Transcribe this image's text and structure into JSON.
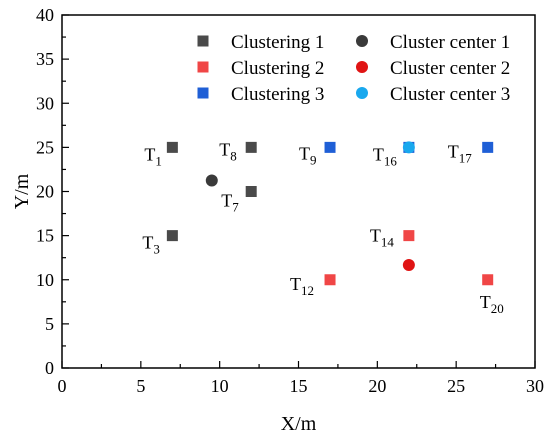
{
  "chart_data": {
    "type": "scatter",
    "xlabel": "X/m",
    "ylabel": "Y/m",
    "xlim": [
      0,
      30
    ],
    "ylim": [
      0,
      40
    ],
    "xticks": [
      0,
      5,
      10,
      15,
      20,
      25,
      30
    ],
    "yticks": [
      0,
      5,
      10,
      15,
      20,
      25,
      30,
      35,
      40
    ],
    "grid": false,
    "legend_position": "top-right",
    "series": [
      {
        "name": "Clustering 1",
        "marker": "square",
        "color": "#4a4a4a",
        "points": [
          {
            "label": "T",
            "sub": "1",
            "x": 7,
            "y": 25
          },
          {
            "label": "T",
            "sub": "8",
            "x": 12,
            "y": 25
          },
          {
            "label": "T",
            "sub": "7",
            "x": 12,
            "y": 20
          },
          {
            "label": "T",
            "sub": "3",
            "x": 7,
            "y": 15
          }
        ]
      },
      {
        "name": "Clustering 2",
        "marker": "square",
        "color": "#f04646",
        "points": [
          {
            "label": "T",
            "sub": "14",
            "x": 22,
            "y": 15
          },
          {
            "label": "T",
            "sub": "12",
            "x": 17,
            "y": 10
          },
          {
            "label": "T",
            "sub": "20",
            "x": 27,
            "y": 10
          }
        ]
      },
      {
        "name": "Clustering 3",
        "marker": "square",
        "color": "#1f5fd6",
        "points": [
          {
            "label": "T",
            "sub": "9",
            "x": 17,
            "y": 25
          },
          {
            "label": "T",
            "sub": "16",
            "x": 22,
            "y": 25
          },
          {
            "label": "T",
            "sub": "17",
            "x": 27,
            "y": 25
          }
        ]
      },
      {
        "name": "Cluster center 1",
        "marker": "circle",
        "color": "#3a3a3a",
        "points": [
          {
            "x": 9.5,
            "y": 21.25
          }
        ]
      },
      {
        "name": "Cluster center 2",
        "marker": "circle",
        "color": "#e01414",
        "points": [
          {
            "x": 22,
            "y": 11.67
          }
        ]
      },
      {
        "name": "Cluster center 3",
        "marker": "circle",
        "color": "#19a8ee",
        "points": [
          {
            "x": 22,
            "y": 25
          }
        ]
      }
    ]
  }
}
